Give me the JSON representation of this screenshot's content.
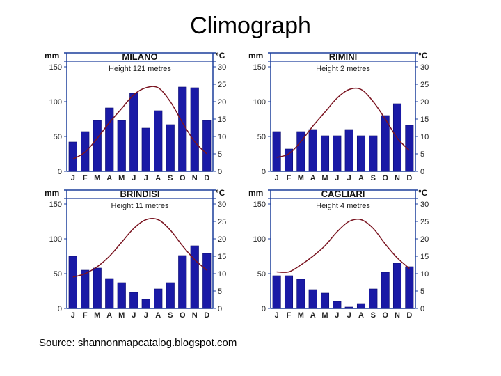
{
  "title": "Climograph",
  "source": "Source: shannonmapcatalog.blogspot.com",
  "colors": {
    "bar": "#1a1aa6",
    "line": "#7a1420",
    "frame": "#1c3f9c"
  },
  "chart_data": [
    {
      "type": "bar",
      "title": "MILANO",
      "subtitle": "Height 121 metres",
      "categories": [
        "J",
        "F",
        "M",
        "A",
        "M",
        "J",
        "J",
        "A",
        "S",
        "O",
        "N",
        "D"
      ],
      "left_unit": "mm",
      "right_unit": "°C",
      "ylim": [
        0,
        150
      ],
      "y2lim": [
        0,
        30
      ],
      "yticks": [
        0,
        50,
        100,
        150
      ],
      "y2ticks": [
        0,
        5,
        10,
        15,
        20,
        25,
        30
      ],
      "series": [
        {
          "type": "bar",
          "axis": "left",
          "values": [
            42,
            57,
            73,
            91,
            73,
            112,
            62,
            87,
            67,
            121,
            120,
            73
          ]
        },
        {
          "type": "line",
          "axis": "right",
          "values": [
            3.5,
            5.5,
            9.5,
            14,
            18,
            22,
            24,
            24,
            20,
            14,
            8.5,
            5
          ]
        }
      ]
    },
    {
      "type": "bar",
      "title": "RIMINI",
      "subtitle": "Height 2 metres",
      "categories": [
        "J",
        "F",
        "M",
        "A",
        "M",
        "J",
        "J",
        "A",
        "S",
        "O",
        "N",
        "D"
      ],
      "left_unit": "mm",
      "right_unit": "°C",
      "ylim": [
        0,
        150
      ],
      "y2lim": [
        0,
        30
      ],
      "yticks": [
        0,
        50,
        100,
        150
      ],
      "y2ticks": [
        0,
        5,
        10,
        15,
        20,
        25,
        30
      ],
      "series": [
        {
          "type": "bar",
          "axis": "left",
          "values": [
            57,
            32,
            57,
            60,
            51,
            51,
            60,
            51,
            51,
            80,
            97,
            66
          ]
        },
        {
          "type": "line",
          "axis": "right",
          "values": [
            4,
            5,
            8.5,
            13,
            17,
            21,
            23.5,
            23.5,
            20,
            15,
            9.5,
            6
          ]
        }
      ]
    },
    {
      "type": "bar",
      "title": "BRINDISI",
      "subtitle": "Height 11 metres",
      "categories": [
        "J",
        "F",
        "M",
        "A",
        "M",
        "J",
        "J",
        "A",
        "S",
        "O",
        "N",
        "D"
      ],
      "left_unit": "mm",
      "right_unit": "°C",
      "ylim": [
        0,
        150
      ],
      "y2lim": [
        0,
        30
      ],
      "yticks": [
        0,
        50,
        100,
        150
      ],
      "y2ticks": [
        0,
        5,
        10,
        15,
        20,
        25,
        30
      ],
      "series": [
        {
          "type": "bar",
          "axis": "left",
          "values": [
            75,
            55,
            58,
            43,
            37,
            23,
            13,
            28,
            37,
            76,
            90,
            79
          ]
        },
        {
          "type": "line",
          "axis": "right",
          "values": [
            9,
            10,
            12,
            15,
            19,
            23,
            25.5,
            25.5,
            22.5,
            18,
            14,
            11
          ]
        }
      ]
    },
    {
      "type": "bar",
      "title": "CAGLIARI",
      "subtitle": "Height 4 metres",
      "categories": [
        "J",
        "F",
        "M",
        "A",
        "M",
        "J",
        "J",
        "A",
        "S",
        "O",
        "N",
        "D"
      ],
      "left_unit": "mm",
      "right_unit": "°C",
      "ylim": [
        0,
        150
      ],
      "y2lim": [
        0,
        30
      ],
      "yticks": [
        0,
        50,
        100,
        150
      ],
      "y2ticks": [
        0,
        5,
        10,
        15,
        20,
        25,
        30
      ],
      "series": [
        {
          "type": "bar",
          "axis": "left",
          "values": [
            47,
            47,
            42,
            27,
            22,
            10,
            2,
            7,
            28,
            52,
            65,
            60
          ]
        },
        {
          "type": "line",
          "axis": "right",
          "values": [
            10.5,
            10.5,
            12.5,
            15,
            18,
            22,
            25,
            25.5,
            23,
            18.5,
            14.5,
            11.5
          ]
        }
      ]
    }
  ]
}
